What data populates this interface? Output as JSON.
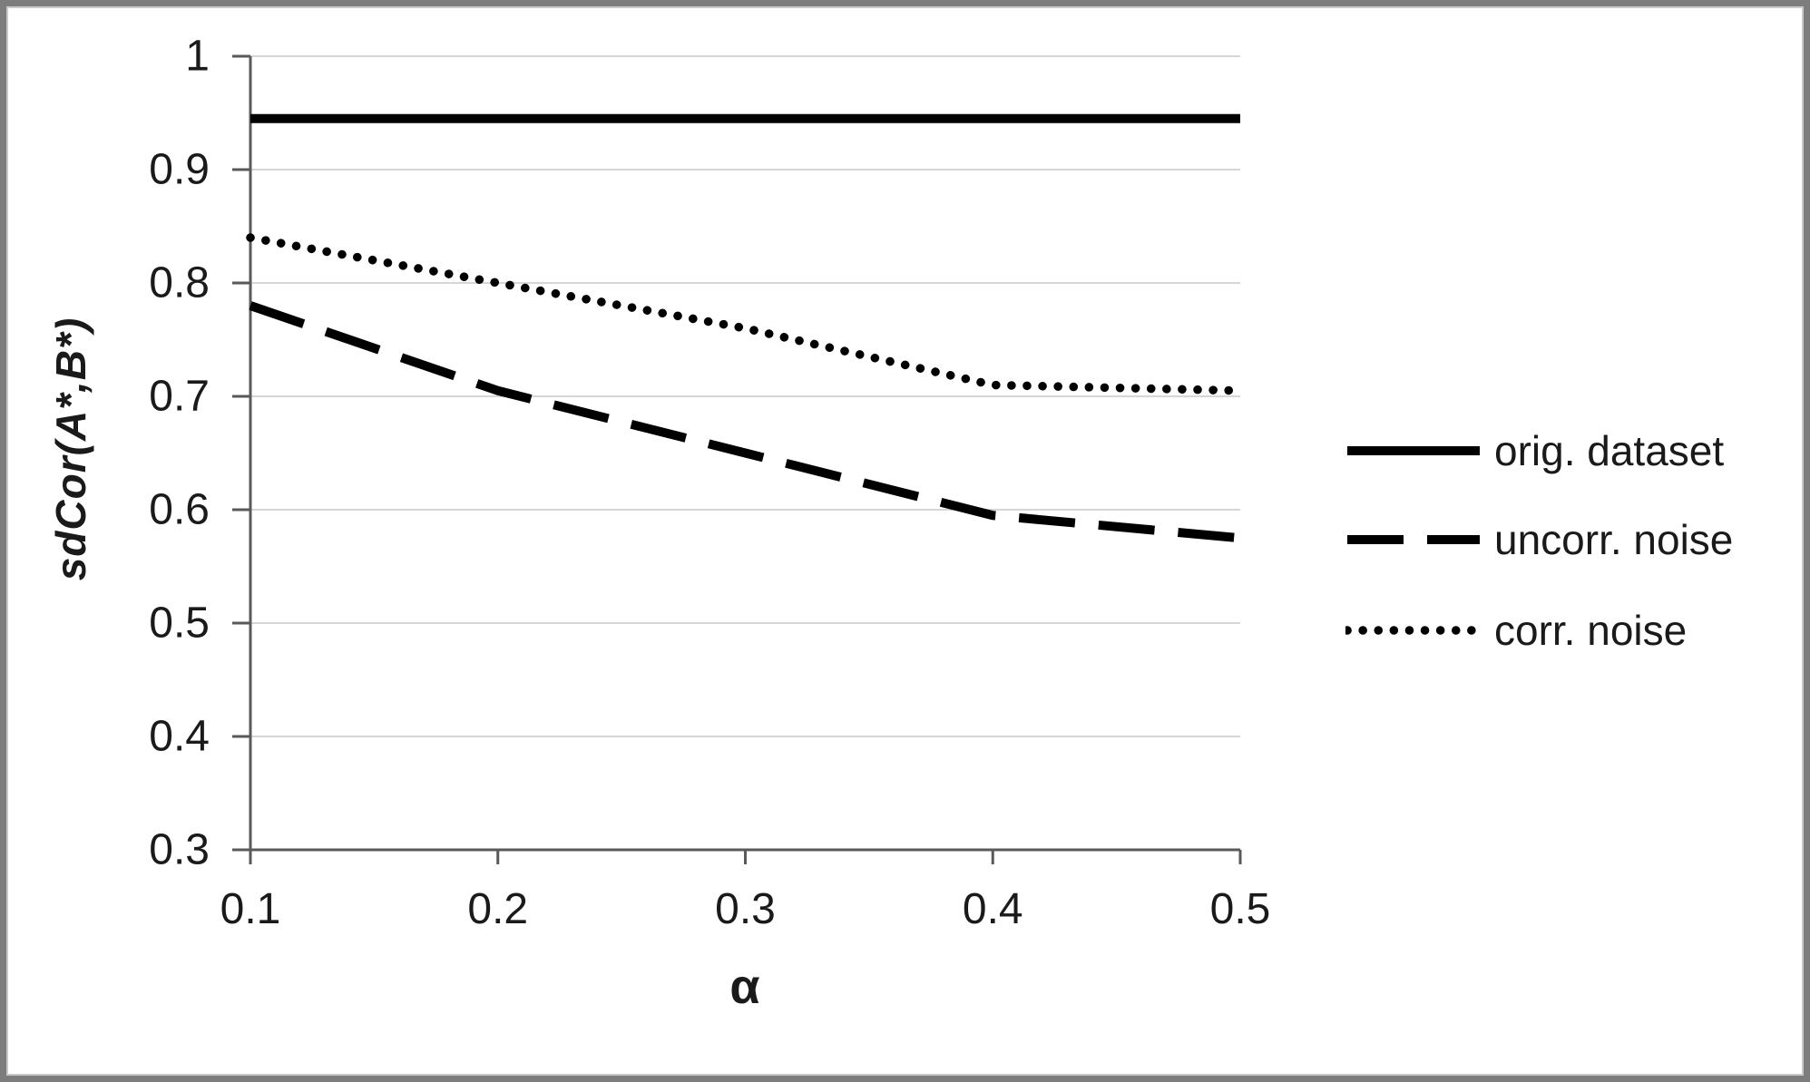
{
  "chart_data": {
    "type": "line",
    "x": [
      0.1,
      0.2,
      0.3,
      0.4,
      0.5
    ],
    "series": [
      {
        "name": "orig. dataset",
        "line_style": "solid",
        "values": [
          0.945,
          0.945,
          0.945,
          0.945,
          0.945
        ]
      },
      {
        "name": "uncorr. noise",
        "line_style": "dashed",
        "values": [
          0.78,
          0.705,
          0.65,
          0.595,
          0.575
        ]
      },
      {
        "name": "corr. noise",
        "line_style": "dotted",
        "values": [
          0.84,
          0.8,
          0.76,
          0.71,
          0.705
        ]
      }
    ],
    "title": "",
    "xlabel": "α",
    "ylabel": "sdCor(A*,B*)",
    "xlim": [
      0.1,
      0.5
    ],
    "ylim": [
      0.3,
      1.0
    ],
    "yticks": [
      1,
      0.9,
      0.8,
      0.7,
      0.6,
      0.5,
      0.4,
      0.3
    ],
    "ytick_labels": [
      "1",
      "0.9",
      "0.8",
      "0.7",
      "0.6",
      "0.5",
      "0.4",
      "0.3"
    ],
    "xtick_labels": [
      "0.1",
      "0.2",
      "0.3",
      "0.4",
      "0.5"
    ],
    "grid": "horizontal",
    "legend_position": "right-outside",
    "colors": {
      "line": "#000000",
      "axis": "#595959",
      "grid": "#d6d6d6",
      "border": "#7d7d7d",
      "background": "#ffffff",
      "text": "#1a1a1a"
    }
  }
}
